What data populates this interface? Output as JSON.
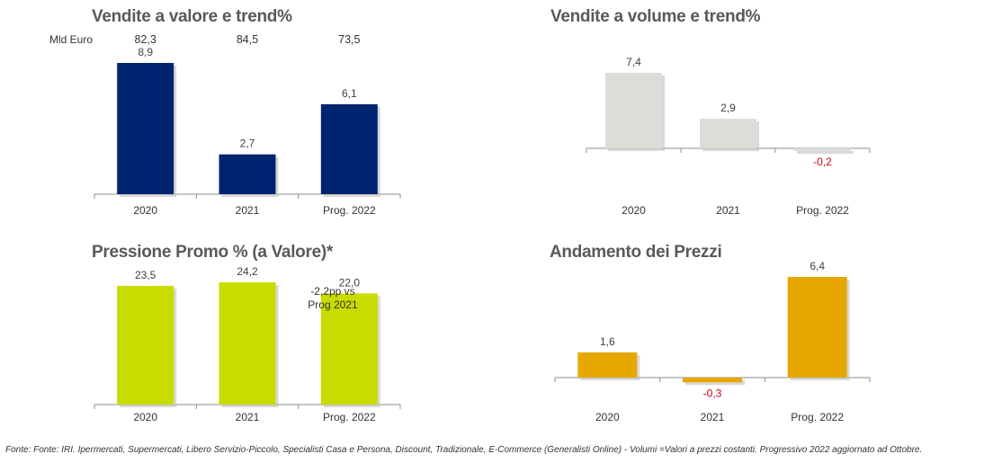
{
  "footer": "Fonte: Fonte: IRI. Ipermercati, Supermercati, Libero Servizio-Piccolo, Specialisti Casa e Persona, Discount, Tradizionale, E-Commerce (Generalisti Online) -  Volumi =Valori a prezzi costanti. Progressivo 2022 aggiornato ad Ottobre.",
  "chart_data": [
    {
      "type": "bar",
      "title": "Vendite a valore e trend%",
      "categories": [
        "2020",
        "2021",
        "Prog. 2022"
      ],
      "values": [
        8.9,
        2.7,
        6.1
      ],
      "value_labels": [
        "8,9",
        "2,7",
        "6,1"
      ],
      "top_row_label": "Mld Euro",
      "top_row_values": [
        "82,3",
        "84,5",
        "73,5"
      ],
      "ylim": [
        0,
        8.9
      ],
      "color": "#002570",
      "grid": false
    },
    {
      "type": "bar",
      "title": "Vendite a volume e trend%",
      "categories": [
        "2020",
        "2021",
        "Prog. 2022"
      ],
      "values": [
        7.4,
        2.9,
        -0.2
      ],
      "value_labels": [
        "7,4",
        "2,9",
        "-0,2"
      ],
      "ylim": [
        -0.2,
        7.4
      ],
      "color": "#ddddd8",
      "negative_label_color": "#d0001a",
      "grid": false
    },
    {
      "type": "bar",
      "title": "Pressione Promo % (a Valore)*",
      "categories": [
        "2020",
        "2021",
        "Prog. 2022"
      ],
      "values": [
        23.5,
        24.2,
        22.0
      ],
      "value_labels": [
        "23,5",
        "24,2",
        "22,0"
      ],
      "annotation": [
        "-2,2pp vs",
        "Prog 2021"
      ],
      "ylim": [
        0,
        24.2
      ],
      "color": "#c8dc00",
      "grid": false
    },
    {
      "type": "bar",
      "title": "Andamento dei Prezzi",
      "categories": [
        "2020",
        "2021",
        "Prog. 2022"
      ],
      "values": [
        1.6,
        -0.3,
        6.4
      ],
      "value_labels": [
        "1,6",
        "-0,3",
        "6,4"
      ],
      "ylim": [
        -0.3,
        6.4
      ],
      "color": "#e6a800",
      "negative_label_color": "#d0001a",
      "grid": false
    }
  ]
}
